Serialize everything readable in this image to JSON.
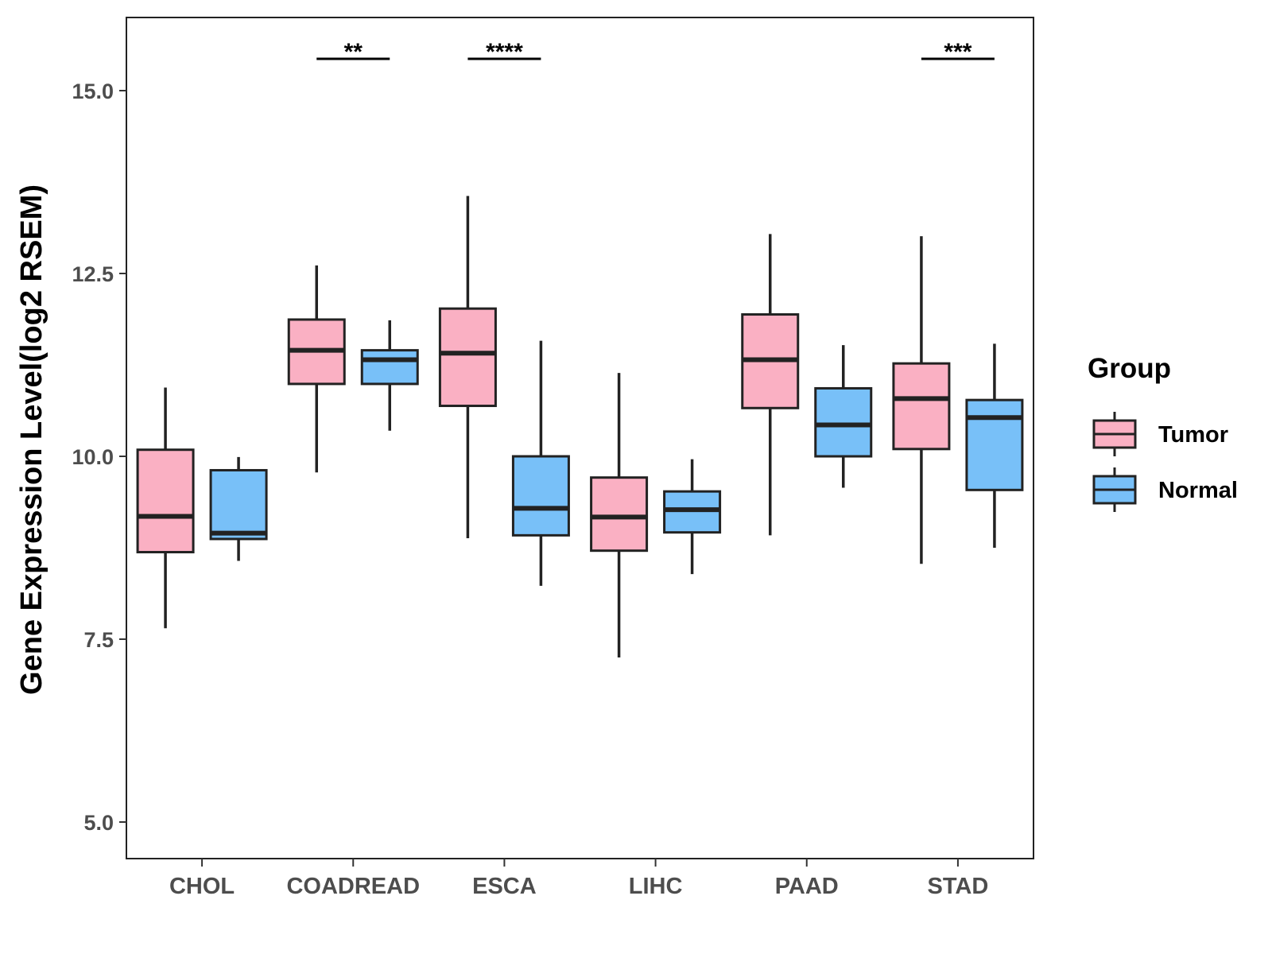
{
  "chart_data": {
    "type": "boxplot",
    "title": "",
    "xlabel": "",
    "ylabel": "Gene Expression Level(log2 RSEM)",
    "ylim": [
      4.5,
      16.0
    ],
    "yticks": [
      5.0,
      7.5,
      10.0,
      12.5,
      15.0
    ],
    "ytick_labels": [
      "5.0",
      "7.5",
      "10.0",
      "12.5",
      "15.0"
    ],
    "categories": [
      "CHOL",
      "COADREAD",
      "ESCA",
      "LIHC",
      "PAAD",
      "STAD"
    ],
    "legend": {
      "title": "Group",
      "position": "right",
      "entries": [
        "Tumor",
        "Normal"
      ]
    },
    "series": [
      {
        "name": "Tumor",
        "color": "#FAB0C3",
        "boxes": [
          {
            "whisker_low": 7.65,
            "q1": 8.69,
            "median": 9.18,
            "q3": 10.09,
            "whisker_high": 10.94
          },
          {
            "whisker_low": 9.78,
            "q1": 10.99,
            "median": 11.45,
            "q3": 11.87,
            "whisker_high": 12.61
          },
          {
            "whisker_low": 8.88,
            "q1": 10.69,
            "median": 11.41,
            "q3": 12.02,
            "whisker_high": 13.56
          },
          {
            "whisker_low": 7.25,
            "q1": 8.71,
            "median": 9.17,
            "q3": 9.71,
            "whisker_high": 11.14
          },
          {
            "whisker_low": 8.92,
            "q1": 10.66,
            "median": 11.32,
            "q3": 11.94,
            "whisker_high": 13.04
          },
          {
            "whisker_low": 8.53,
            "q1": 10.1,
            "median": 10.79,
            "q3": 11.27,
            "whisker_high": 13.01
          }
        ]
      },
      {
        "name": "Normal",
        "color": "#78C0F8",
        "boxes": [
          {
            "whisker_low": 8.57,
            "q1": 8.87,
            "median": 8.95,
            "q3": 9.81,
            "whisker_high": 9.99
          },
          {
            "whisker_low": 10.35,
            "q1": 10.99,
            "median": 11.32,
            "q3": 11.45,
            "whisker_high": 11.86
          },
          {
            "whisker_low": 8.23,
            "q1": 8.92,
            "median": 9.29,
            "q3": 10.0,
            "whisker_high": 11.58
          },
          {
            "whisker_low": 8.39,
            "q1": 8.96,
            "median": 9.27,
            "q3": 9.52,
            "whisker_high": 9.96
          },
          {
            "whisker_low": 9.57,
            "q1": 10.0,
            "median": 10.43,
            "q3": 10.93,
            "whisker_high": 11.52
          },
          {
            "whisker_low": 8.75,
            "q1": 9.54,
            "median": 10.53,
            "q3": 10.77,
            "whisker_high": 11.54
          }
        ]
      }
    ],
    "significance": [
      {
        "category": "COADREAD",
        "label": "**"
      },
      {
        "category": "ESCA",
        "label": "****"
      },
      {
        "category": "STAD",
        "label": "***"
      }
    ]
  }
}
